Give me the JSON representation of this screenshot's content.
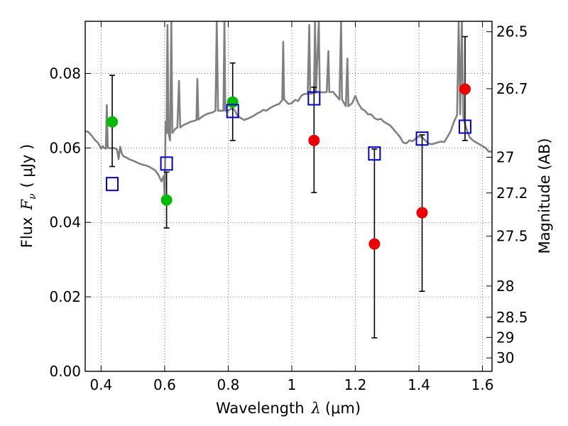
{
  "chart_data": {
    "type": "scatter",
    "xlabel": "Wavelength",
    "xlabel_symbol": "λ",
    "xlabel_unit": "(μm)",
    "ylabel": "Flux",
    "ylabel_symbol": "F",
    "ylabel_subscript": "ν",
    "ylabel_unit": "( μJy )",
    "y2label": "Magnitude (AB)",
    "xlim": [
      0.35,
      1.63
    ],
    "ylim": [
      0.0,
      0.094
    ],
    "grid": true,
    "grid_style": "dotted",
    "x_ticks": [
      0.4,
      0.6,
      0.8,
      1.0,
      1.2,
      1.4,
      1.6
    ],
    "x_tick_labels": [
      "0.4",
      "0.6",
      "0.8",
      "1",
      "1.2",
      "1.4",
      "1.6"
    ],
    "y_ticks": [
      0.0,
      0.02,
      0.04,
      0.06,
      0.08
    ],
    "y_tick_labels": [
      "0.00",
      "0.02",
      "0.04",
      "0.06",
      "0.08"
    ],
    "y2_ticks": [
      {
        "label": "26.5",
        "flux": 0.0912
      },
      {
        "label": "26.7",
        "flux": 0.0759
      },
      {
        "label": "27",
        "flux": 0.0575
      },
      {
        "label": "27.2",
        "flux": 0.0479
      },
      {
        "label": "27.5",
        "flux": 0.0363
      },
      {
        "label": "28",
        "flux": 0.0229
      },
      {
        "label": "28.5",
        "flux": 0.0145
      },
      {
        "label": "29",
        "flux": 0.0091
      },
      {
        "label": "30",
        "flux": 0.0036
      }
    ],
    "series": [
      {
        "marker": "circle",
        "color": "#00bb00",
        "points": [
          {
            "x": 0.435,
            "y": 0.067,
            "yerr_low": 0.055,
            "yerr_high": 0.0795
          },
          {
            "x": 0.606,
            "y": 0.046,
            "yerr_low": 0.0385,
            "yerr_high": 0.0535
          },
          {
            "x": 0.814,
            "y": 0.0723,
            "yerr_low": 0.062,
            "yerr_high": 0.0828
          }
        ]
      },
      {
        "marker": "circle",
        "color": "#ee0000",
        "points": [
          {
            "x": 1.07,
            "y": 0.062,
            "yerr_low": 0.048,
            "yerr_high": 0.0763
          },
          {
            "x": 1.26,
            "y": 0.0342,
            "yerr_low": 0.009,
            "yerr_high": 0.0597
          },
          {
            "x": 1.41,
            "y": 0.0426,
            "yerr_low": 0.0215,
            "yerr_high": 0.0635
          },
          {
            "x": 1.545,
            "y": 0.0758,
            "yerr_low": 0.062,
            "yerr_high": 0.0899
          }
        ]
      },
      {
        "marker": "open-square",
        "color": "#0000cc",
        "points": [
          {
            "x": 0.435,
            "y": 0.0503
          },
          {
            "x": 0.606,
            "y": 0.0558
          },
          {
            "x": 0.814,
            "y": 0.0699
          },
          {
            "x": 1.07,
            "y": 0.0733
          },
          {
            "x": 1.26,
            "y": 0.0585
          },
          {
            "x": 1.41,
            "y": 0.0625
          },
          {
            "x": 1.545,
            "y": 0.0657
          }
        ]
      }
    ],
    "spectrum": {
      "color": "#808080",
      "points": [
        [
          0.35,
          0.0645
        ],
        [
          0.36,
          0.0643
        ],
        [
          0.37,
          0.0633
        ],
        [
          0.38,
          0.0622
        ],
        [
          0.39,
          0.0614
        ],
        [
          0.4,
          0.0598
        ],
        [
          0.405,
          0.0605
        ],
        [
          0.41,
          0.0599
        ],
        [
          0.415,
          0.0598
        ],
        [
          0.418,
          0.0715
        ],
        [
          0.421,
          0.06
        ],
        [
          0.43,
          0.0599
        ],
        [
          0.44,
          0.06
        ],
        [
          0.45,
          0.0596
        ],
        [
          0.455,
          0.057
        ],
        [
          0.46,
          0.0603
        ],
        [
          0.465,
          0.0585
        ],
        [
          0.47,
          0.0578
        ],
        [
          0.48,
          0.0574
        ],
        [
          0.49,
          0.0569
        ],
        [
          0.5,
          0.0566
        ],
        [
          0.51,
          0.0562
        ],
        [
          0.52,
          0.0558
        ],
        [
          0.53,
          0.0555
        ],
        [
          0.54,
          0.0553
        ],
        [
          0.55,
          0.055
        ],
        [
          0.56,
          0.0545
        ],
        [
          0.57,
          0.054
        ],
        [
          0.58,
          0.0528
        ],
        [
          0.59,
          0.051
        ],
        [
          0.597,
          0.0525
        ],
        [
          0.6,
          0.0465
        ],
        [
          0.603,
          0.067
        ],
        [
          0.606,
          0.064
        ],
        [
          0.609,
          0.093
        ],
        [
          0.612,
          0.064
        ],
        [
          0.617,
          0.062
        ],
        [
          0.621,
          0.094
        ],
        [
          0.624,
          0.064
        ],
        [
          0.632,
          0.065
        ],
        [
          0.64,
          0.0655
        ],
        [
          0.645,
          0.078
        ],
        [
          0.649,
          0.0655
        ],
        [
          0.66,
          0.0662
        ],
        [
          0.67,
          0.0665
        ],
        [
          0.68,
          0.067
        ],
        [
          0.69,
          0.0672
        ],
        [
          0.7,
          0.0675
        ],
        [
          0.703,
          0.0785
        ],
        [
          0.706,
          0.0676
        ],
        [
          0.72,
          0.0685
        ],
        [
          0.73,
          0.069
        ],
        [
          0.74,
          0.0693
        ],
        [
          0.75,
          0.0695
        ],
        [
          0.76,
          0.07
        ],
        [
          0.764,
          0.094
        ],
        [
          0.768,
          0.07
        ],
        [
          0.78,
          0.07
        ],
        [
          0.785,
          0.07
        ],
        [
          0.788,
          0.094
        ],
        [
          0.791,
          0.07
        ],
        [
          0.8,
          0.07
        ],
        [
          0.81,
          0.0706
        ],
        [
          0.82,
          0.0702
        ],
        [
          0.83,
          0.0685
        ],
        [
          0.84,
          0.068
        ],
        [
          0.85,
          0.0675
        ],
        [
          0.86,
          0.0678
        ],
        [
          0.87,
          0.0682
        ],
        [
          0.88,
          0.0686
        ],
        [
          0.89,
          0.0692
        ],
        [
          0.9,
          0.0696
        ],
        [
          0.91,
          0.0702
        ],
        [
          0.92,
          0.07
        ],
        [
          0.93,
          0.0706
        ],
        [
          0.94,
          0.0711
        ],
        [
          0.95,
          0.0715
        ],
        [
          0.96,
          0.0718
        ],
        [
          0.97,
          0.0728
        ],
        [
          0.973,
          0.0885
        ],
        [
          0.976,
          0.073
        ],
        [
          0.99,
          0.0718
        ],
        [
          1.0,
          0.072
        ],
        [
          1.01,
          0.0729
        ],
        [
          1.02,
          0.0726
        ],
        [
          1.03,
          0.074
        ],
        [
          1.04,
          0.0745
        ],
        [
          1.05,
          0.0745
        ],
        [
          1.055,
          0.093
        ],
        [
          1.058,
          0.0745
        ],
        [
          1.07,
          0.0748
        ],
        [
          1.073,
          0.094
        ],
        [
          1.076,
          0.0748
        ],
        [
          1.085,
          0.094
        ],
        [
          1.088,
          0.075
        ],
        [
          1.1,
          0.0749
        ],
        [
          1.11,
          0.075
        ],
        [
          1.115,
          0.086
        ],
        [
          1.118,
          0.075
        ],
        [
          1.13,
          0.075
        ],
        [
          1.14,
          0.074
        ],
        [
          1.15,
          0.073
        ],
        [
          1.155,
          0.094
        ],
        [
          1.158,
          0.073
        ],
        [
          1.17,
          0.0712
        ],
        [
          1.175,
          0.084
        ],
        [
          1.178,
          0.0712
        ],
        [
          1.19,
          0.072
        ],
        [
          1.2,
          0.074
        ],
        [
          1.21,
          0.0718
        ],
        [
          1.22,
          0.0705
        ],
        [
          1.23,
          0.07
        ],
        [
          1.24,
          0.069
        ],
        [
          1.25,
          0.069
        ],
        [
          1.26,
          0.068
        ],
        [
          1.27,
          0.0676
        ],
        [
          1.28,
          0.0678
        ],
        [
          1.29,
          0.067
        ],
        [
          1.3,
          0.0665
        ],
        [
          1.31,
          0.066
        ],
        [
          1.32,
          0.065
        ],
        [
          1.33,
          0.064
        ],
        [
          1.34,
          0.063
        ],
        [
          1.35,
          0.0615
        ],
        [
          1.36,
          0.0612
        ],
        [
          1.37,
          0.062
        ],
        [
          1.38,
          0.0618
        ],
        [
          1.39,
          0.0625
        ],
        [
          1.4,
          0.0632
        ],
        [
          1.41,
          0.0628
        ],
        [
          1.42,
          0.062
        ],
        [
          1.43,
          0.0612
        ],
        [
          1.44,
          0.061
        ],
        [
          1.45,
          0.0612
        ],
        [
          1.46,
          0.0615
        ],
        [
          1.47,
          0.0617
        ],
        [
          1.48,
          0.0616
        ],
        [
          1.49,
          0.063
        ],
        [
          1.5,
          0.0645
        ],
        [
          1.51,
          0.067
        ],
        [
          1.52,
          0.0688
        ],
        [
          1.525,
          0.094
        ],
        [
          1.53,
          0.069
        ],
        [
          1.535,
          0.094
        ],
        [
          1.54,
          0.068
        ],
        [
          1.55,
          0.065
        ],
        [
          1.56,
          0.0628
        ],
        [
          1.57,
          0.062
        ],
        [
          1.58,
          0.0615
        ],
        [
          1.59,
          0.061
        ],
        [
          1.6,
          0.0605
        ],
        [
          1.61,
          0.06
        ],
        [
          1.62,
          0.059
        ],
        [
          1.63,
          0.059
        ]
      ]
    }
  }
}
